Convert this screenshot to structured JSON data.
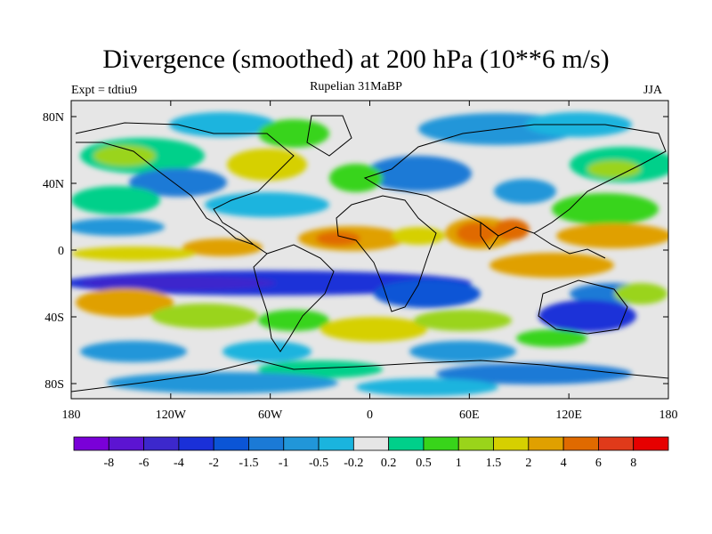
{
  "header": {
    "title": "Divergence (smoothed) at 200 hPa (10**6 m/s)",
    "experiment": "Expt = tdtiu9",
    "subtitle": "Rupelian  31MaBP",
    "season": "JJA"
  },
  "axes": {
    "y_ticks": [
      "80N",
      "40N",
      "0",
      "40S",
      "80S"
    ],
    "x_ticks": [
      "180",
      "120W",
      "60W",
      "0",
      "60E",
      "120E",
      "180"
    ]
  },
  "colorbar": {
    "labels": [
      "-8",
      "-6",
      "-4",
      "-2",
      "-1.5",
      "-1",
      "-0.5",
      "-0.2",
      "0.2",
      "0.5",
      "1",
      "1.5",
      "2",
      "4",
      "6",
      "8"
    ],
    "colors": [
      "#7a00d8",
      "#5c14d2",
      "#3c28cc",
      "#1a30d8",
      "#0b55d6",
      "#1b7ad6",
      "#2196d9",
      "#1ab4de",
      "#e6e6e6",
      "#00d08a",
      "#38d41a",
      "#9ad41a",
      "#d6d000",
      "#e0a000",
      "#e06a00",
      "#e03a1a",
      "#e60000"
    ]
  },
  "map": {
    "background_color": "#e6e6e6",
    "coastline_color": "#000000"
  }
}
